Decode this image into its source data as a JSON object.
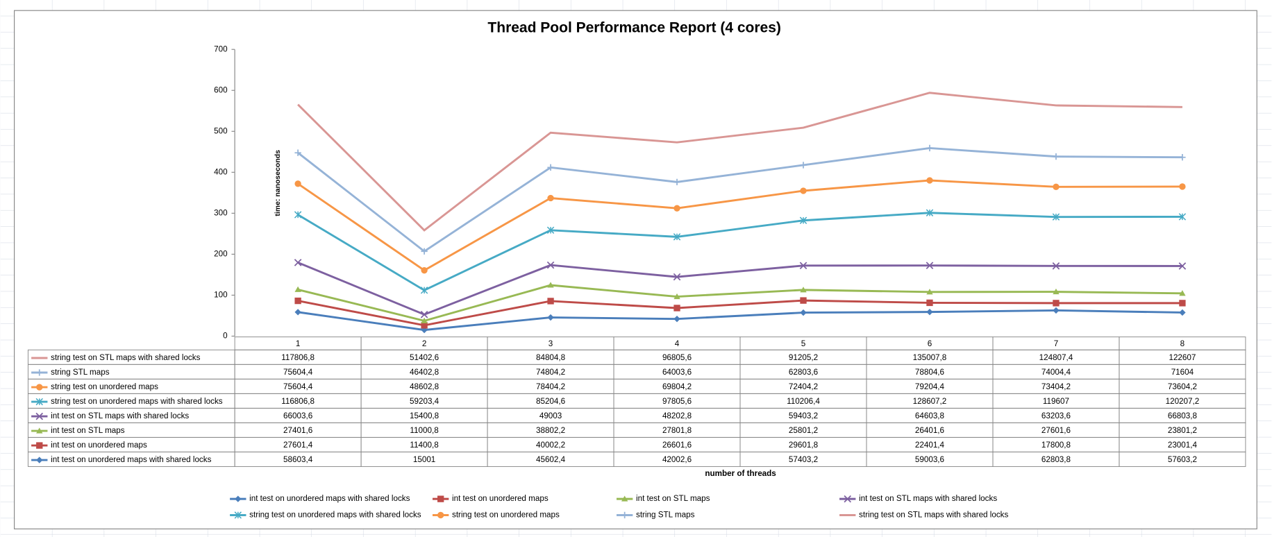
{
  "chart_data": {
    "type": "line",
    "stacked": true,
    "title": "Thread Pool Performance Report (4 cores)",
    "y_label": "time: nanoseconds",
    "x_label": "number of threads",
    "categories": [
      "1",
      "2",
      "3",
      "4",
      "5",
      "6",
      "7",
      "8"
    ],
    "ylim": [
      0,
      700000
    ],
    "yticks": [
      0,
      {
        "value": 100000,
        "label": "100"
      },
      {
        "value": 200000,
        "label": "200"
      },
      {
        "value": 300000,
        "label": "300"
      },
      {
        "value": 400000,
        "label": "400"
      },
      {
        "value": 500000,
        "label": "500"
      },
      {
        "value": 600000,
        "label": "600"
      },
      {
        "value": 700000,
        "label": "700"
      }
    ],
    "series": [
      {
        "name": "int test on unordered maps with shared locks",
        "color": "#4a7ebb",
        "marker": "diamond",
        "values": [
          58603.4,
          15001,
          45602.4,
          42002.6,
          57403.2,
          59003.6,
          62803.8,
          57603.2
        ],
        "value_labels": [
          "58603,4",
          "15001",
          "45602,4",
          "42002,6",
          "57403,2",
          "59003,6",
          "62803,8",
          "57603,2"
        ]
      },
      {
        "name": "int test on unordered maps",
        "color": "#be4b48",
        "marker": "square",
        "values": [
          27601.4,
          11400.8,
          40002.2,
          26601.6,
          29601.8,
          22401.4,
          17800.8,
          23001.4
        ],
        "value_labels": [
          "27601,4",
          "11400,8",
          "40002,2",
          "26601,6",
          "29601,8",
          "22401,4",
          "17800,8",
          "23001,4"
        ]
      },
      {
        "name": "int test on STL maps",
        "color": "#98b954",
        "marker": "triangle",
        "values": [
          27401.6,
          11000.8,
          38802.2,
          27801.8,
          25801.2,
          26401.6,
          27601.6,
          23801.2
        ],
        "value_labels": [
          "27401,6",
          "11000,8",
          "38802,2",
          "27801,8",
          "25801,2",
          "26401,6",
          "27601,6",
          "23801,2"
        ]
      },
      {
        "name": "int test on STL maps with shared locks",
        "color": "#7d60a0",
        "marker": "x",
        "values": [
          66003.6,
          15400.8,
          49003,
          48202.8,
          59403.2,
          64603.8,
          63203.6,
          66803.8
        ],
        "value_labels": [
          "66003,6",
          "15400,8",
          "49003",
          "48202,8",
          "59403,2",
          "64603,8",
          "63203,6",
          "66803,8"
        ]
      },
      {
        "name": "string test on unordered maps with  shared locks",
        "color": "#46aac5",
        "marker": "star",
        "values": [
          116806.8,
          59203.4,
          85204.6,
          97805.6,
          110206.4,
          128607.2,
          119607,
          120207.2
        ],
        "value_labels": [
          "116806,8",
          "59203,4",
          "85204,6",
          "97805,6",
          "110206,4",
          "128607,2",
          "119607",
          "120207,2"
        ]
      },
      {
        "name": "string test on unordered maps",
        "color": "#f79646",
        "marker": "circle",
        "values": [
          75604.4,
          48602.8,
          78404.2,
          69804.2,
          72404.2,
          79204.4,
          73404.2,
          73604.2
        ],
        "value_labels": [
          "75604,4",
          "48602,8",
          "78404,2",
          "69804,2",
          "72404,2",
          "79204,4",
          "73404,2",
          "73604,2"
        ]
      },
      {
        "name": "string STL maps",
        "color": "#95b3d7",
        "marker": "plus",
        "values": [
          75604.4,
          46402.8,
          74804.2,
          64003.6,
          62803.6,
          78804.6,
          74004.4,
          71604
        ],
        "value_labels": [
          "75604,4",
          "46402,8",
          "74804,2",
          "64003,6",
          "62803,6",
          "78804,6",
          "74004,4",
          "71604"
        ]
      },
      {
        "name": "string test on STL maps with shared locks",
        "color": "#d99694",
        "marker": "none",
        "values": [
          117806.8,
          51402.6,
          84804.8,
          96805.6,
          91205.2,
          135007.8,
          124807.4,
          122607
        ],
        "value_labels": [
          "117806,8",
          "51402,6",
          "84804,8",
          "96805,6",
          "91205,2",
          "135007,8",
          "124807,4",
          "122607"
        ]
      }
    ]
  }
}
